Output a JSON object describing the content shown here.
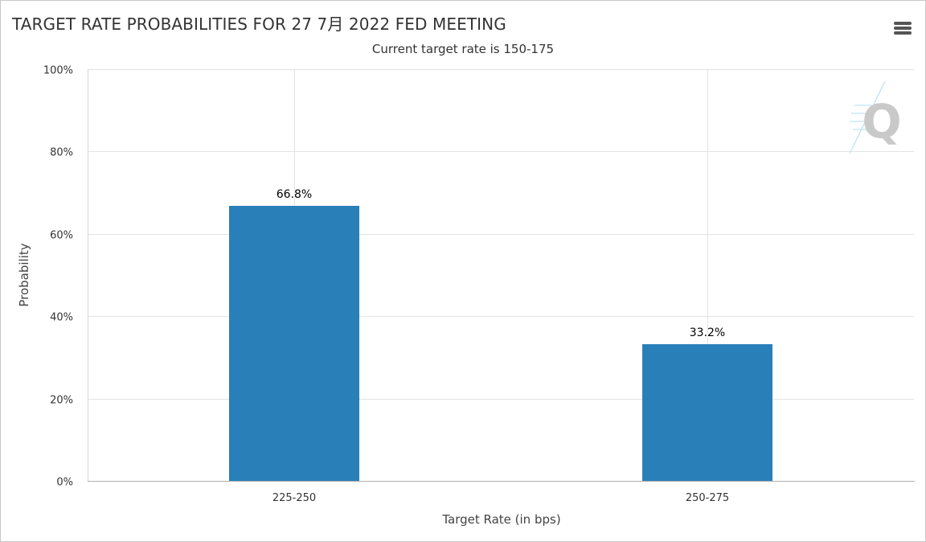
{
  "chart": {
    "title": "TARGET RATE PROBABILITIES FOR 27 7月 2022 FED MEETING",
    "subtitle": "Current target rate is 150-175"
  },
  "toolbar": {
    "menu_icon": "hamburger-menu-icon"
  },
  "watermark": {
    "icon": "q-logo-icon",
    "letter": "Q"
  },
  "colors": {
    "bar": "#2980b9",
    "grid": "#e3e3e3",
    "axis": "#ccd6eb"
  },
  "chart_data": {
    "type": "bar",
    "title": "TARGET RATE PROBABILITIES FOR 27 7月 2022 FED MEETING",
    "subtitle": "Current target rate is 150-175",
    "categories": [
      "225-250",
      "250-275"
    ],
    "values": [
      66.8,
      33.2
    ],
    "data_labels": [
      "66.8%",
      "33.2%"
    ],
    "xlabel": "Target Rate (in bps)",
    "ylabel": "Probability",
    "ylim": [
      0,
      100
    ],
    "yticks": [
      0,
      20,
      40,
      60,
      80,
      100
    ],
    "ytick_labels": [
      "0%",
      "20%",
      "40%",
      "60%",
      "80%",
      "100%"
    ],
    "grid": true,
    "legend": "none"
  }
}
